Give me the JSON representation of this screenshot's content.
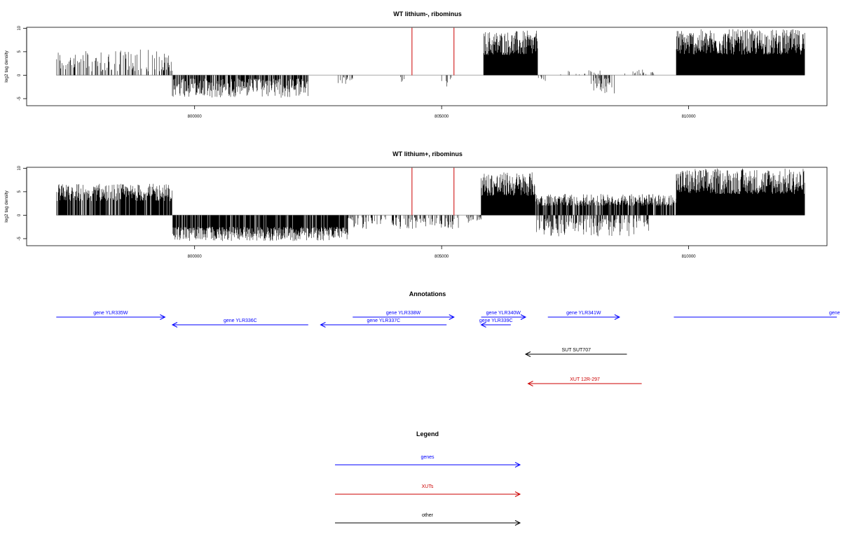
{
  "colors": {
    "genes": "#0000FF",
    "xuts": "#CC0000",
    "other": "#000000",
    "marker": "#CC0000",
    "baseline": "#BEBEBE"
  },
  "chart_data": [
    {
      "type": "bar",
      "title": "WT lithium-, ribominus",
      "ylabel": "log2 tag density",
      "xticks": [
        "800000",
        "805000",
        "810000"
      ],
      "xtick_values": [
        800000,
        805000,
        810000
      ],
      "yticks": [
        "-5",
        "0",
        "5",
        "10"
      ],
      "ytick_values": [
        -5,
        0,
        5,
        10
      ],
      "xlim": [
        796600,
        812800
      ],
      "ylim": [
        -6.5,
        10.2
      ],
      "markers_x": [
        804400,
        805250
      ],
      "segments": [
        {
          "x": [
            797200,
            799550
          ],
          "strand": "+",
          "max": 5.5,
          "density": 0.35
        },
        {
          "x": [
            799550,
            802300
          ],
          "strand": "-",
          "max": 4.8,
          "density": 0.75
        },
        {
          "x": [
            802900,
            803200
          ],
          "strand": "-",
          "max": 2.0,
          "density": 0.25
        },
        {
          "x": [
            803600,
            803700
          ],
          "strand": "-",
          "max": 1.0,
          "density": 0.2
        },
        {
          "x": [
            804150,
            804250
          ],
          "strand": "-",
          "max": 2.0,
          "density": 0.3
        },
        {
          "x": [
            805000,
            805200
          ],
          "strand": "-",
          "max": 2.8,
          "density": 0.25
        },
        {
          "x": [
            805850,
            806950
          ],
          "strand": "+",
          "max": 9.5,
          "density": 1.0
        },
        {
          "x": [
            806950,
            807200
          ],
          "strand": "-",
          "max": 1.8,
          "density": 0.3
        },
        {
          "x": [
            807300,
            808300
          ],
          "strand": "+",
          "max": 1.2,
          "density": 0.12
        },
        {
          "x": [
            808000,
            808500
          ],
          "strand": "-",
          "max": 4.0,
          "density": 0.4
        },
        {
          "x": [
            808700,
            809300
          ],
          "strand": "+",
          "max": 1.2,
          "density": 0.12
        },
        {
          "x": [
            809750,
            812350
          ],
          "strand": "+",
          "max": 9.8,
          "density": 1.0
        }
      ]
    },
    {
      "type": "bar",
      "title": "WT lithium+, ribominus",
      "ylabel": "log2 tag density",
      "xticks": [
        "800000",
        "805000",
        "810000"
      ],
      "xtick_values": [
        800000,
        805000,
        810000
      ],
      "yticks": [
        "-5",
        "0",
        "5",
        "10"
      ],
      "ytick_values": [
        -5,
        0,
        5,
        10
      ],
      "xlim": [
        796600,
        812800
      ],
      "ylim": [
        -6.5,
        10.2
      ],
      "markers_x": [
        804400,
        805250
      ],
      "segments": [
        {
          "x": [
            797200,
            799550
          ],
          "strand": "+",
          "max": 6.7,
          "density": 0.85
        },
        {
          "x": [
            799550,
            803100
          ],
          "strand": "-",
          "max": 5.5,
          "density": 0.9
        },
        {
          "x": [
            803100,
            805400
          ],
          "strand": "-",
          "max": 3.0,
          "density": 0.3
        },
        {
          "x": [
            805500,
            805800
          ],
          "strand": "-",
          "max": 1.8,
          "density": 0.3
        },
        {
          "x": [
            805800,
            806900
          ],
          "strand": "+",
          "max": 9.2,
          "density": 1.0
        },
        {
          "x": [
            806900,
            809750
          ],
          "strand": "+",
          "max": 4.5,
          "density": 0.85
        },
        {
          "x": [
            806900,
            809200
          ],
          "strand": "-",
          "max": 4.5,
          "density": 0.4
        },
        {
          "x": [
            809750,
            812350
          ],
          "strand": "+",
          "max": 10.0,
          "density": 1.0
        }
      ]
    }
  ],
  "annotations": {
    "title": "Annotations",
    "items": [
      {
        "label": "gene YLR335W",
        "type": "genes",
        "start": 797200,
        "end": 799400,
        "strand": "+",
        "row": 0
      },
      {
        "label": "gene YLR336C",
        "type": "genes",
        "start": 799550,
        "end": 802300,
        "strand": "-",
        "row": 1
      },
      {
        "label": "gene YLR337C",
        "type": "genes",
        "start": 802550,
        "end": 805100,
        "strand": "-",
        "row": 1
      },
      {
        "label": "gene YLR338W",
        "type": "genes",
        "start": 803200,
        "end": 805250,
        "strand": "+",
        "row": 0
      },
      {
        "label": "gene YLR340W",
        "type": "genes",
        "start": 805800,
        "end": 806700,
        "strand": "+",
        "row": 0
      },
      {
        "label": "gene YLR339C",
        "type": "genes",
        "start": 805800,
        "end": 806400,
        "strand": "-",
        "row": 1
      },
      {
        "label": "gene YLR341W",
        "type": "genes",
        "start": 807150,
        "end": 808600,
        "strand": "+",
        "row": 0
      },
      {
        "label": "gene YLR",
        "type": "genes",
        "start": 809700,
        "end": 813000,
        "strand": "+",
        "row": 0,
        "clipped": true
      },
      {
        "label": "SUT SUT707",
        "type": "other",
        "start": 806700,
        "end": 808750,
        "strand": "-",
        "row": 2
      },
      {
        "label": "XUT 12R-297",
        "type": "xuts",
        "start": 806750,
        "end": 809050,
        "strand": "-",
        "row": 3
      }
    ]
  },
  "legend": {
    "title": "Legend",
    "items": [
      {
        "label": "genes",
        "type": "genes"
      },
      {
        "label": "XUTs",
        "type": "xuts"
      },
      {
        "label": "other",
        "type": "other"
      }
    ]
  }
}
